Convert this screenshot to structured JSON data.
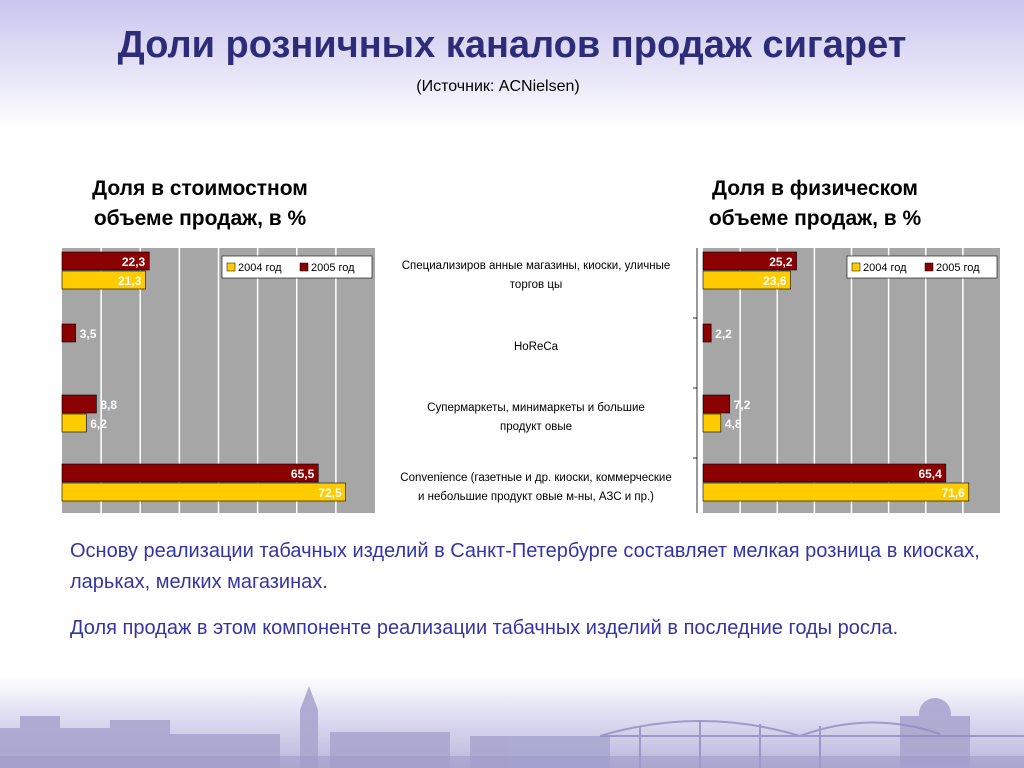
{
  "header": {
    "title": "Доли розничных каналов продаж сигарет",
    "source": "(Источник: ACNielsen)"
  },
  "categories": [
    "Специализиров анные магазины, киоски, уличные торгов цы",
    "HoReCa",
    "Супермаркеты, минимаркеты и большие продукт овые",
    "Convenience (газетные и др. киоски, коммерческие и небольшие продукт овые м-ны, АЗС и пр.)"
  ],
  "category_lines": [
    [
      "Специализиров анные магазины, киоски, уличные",
      "торгов цы"
    ],
    [
      "HoReCa"
    ],
    [
      "Супермаркеты, минимаркеты и большие",
      "продукт овые"
    ],
    [
      "Convenience (газетные и др. киоски, коммерческие",
      "и небольшие продукт овые м-ны, АЗС и пр.)"
    ]
  ],
  "colors": {
    "series_2004": "#ffcc00",
    "series_2005": "#8b0000",
    "plot_bg": "#a6a6a6",
    "title": "#2e2c78",
    "text_accent": "#3534a5"
  },
  "chart_data": [
    {
      "type": "bar",
      "orientation": "horizontal",
      "title": "Доля в стоимостном объеме продаж, в %",
      "title_lines": [
        "Доля в стоимостном",
        "объеме продаж, в %"
      ],
      "categories": [
        "Специализиров анные магазины, киоски, уличные торгов цы",
        "HoReCa",
        "Супермаркеты, минимаркеты и большие продукт овые",
        "Convenience (газетные и др. киоски, коммерческие и небольшие продукт овые м-ны, АЗС и пр.)"
      ],
      "series": [
        {
          "name": "2005 год",
          "values": [
            22.3,
            3.5,
            8.8,
            65.5
          ],
          "labels": [
            "22,3",
            "3,5",
            "8,8",
            "65,5"
          ]
        },
        {
          "name": "2004 год",
          "values": [
            21.3,
            null,
            6.2,
            72.5
          ],
          "labels": [
            "21,3",
            "",
            "6,2",
            "72,5"
          ]
        }
      ],
      "xlim": [
        0,
        80
      ],
      "grid": true,
      "legend": [
        "2004 год",
        "2005 год"
      ],
      "legend_position": "top-right"
    },
    {
      "type": "bar",
      "orientation": "horizontal",
      "title": "Доля в физическом объеме продаж, в %",
      "title_lines": [
        "Доля в физическом",
        "объеме продаж, в %"
      ],
      "categories": [
        "Специализиров анные магазины, киоски, уличные торгов цы",
        "HoReCa",
        "Супермаркеты, минимаркеты и большие продукт овые",
        "Convenience (газетные и др. киоски, коммерческие и небольшие продукт овые м-ны, АЗС и пр.)"
      ],
      "series": [
        {
          "name": "2005 год",
          "values": [
            25.2,
            2.2,
            7.2,
            65.4
          ],
          "labels": [
            "25,2",
            "2,2",
            "7,2",
            "65,4"
          ]
        },
        {
          "name": "2004 год",
          "values": [
            23.6,
            null,
            4.8,
            71.6
          ],
          "labels": [
            "23,6",
            "",
            "4,8",
            "71,6"
          ]
        }
      ],
      "xlim": [
        0,
        80
      ],
      "grid": true,
      "legend": [
        "2004 год",
        "2005 год"
      ],
      "legend_position": "top-right"
    }
  ],
  "paragraphs": [
    "Основу реализации табачных изделий в Санкт-Петербурге составляет мелкая розница в киосках, ларьках, мелких магазинах.",
    "Доля продаж в этом компоненте реализации табачных изделий в последние годы росла."
  ]
}
